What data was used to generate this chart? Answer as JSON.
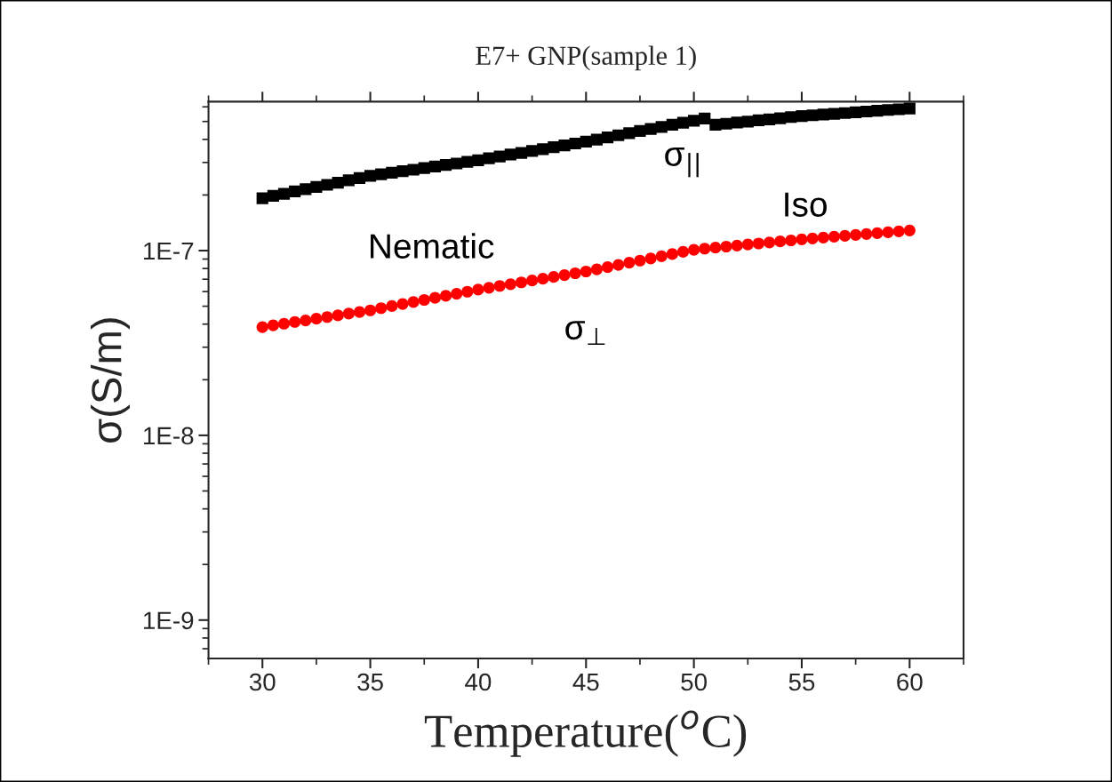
{
  "chart_data": {
    "type": "scatter",
    "title": "E7+ GNP(sample 1)",
    "xlabel": "Temperature($^{o}$C)",
    "ylabel": "σ(S/m)",
    "x": [
      30,
      30.5,
      31,
      31.5,
      32,
      32.5,
      33,
      33.5,
      34,
      34.5,
      35,
      35.5,
      36,
      36.5,
      37,
      37.5,
      38,
      38.5,
      39,
      39.5,
      40,
      40.5,
      41,
      41.5,
      42,
      42.5,
      43,
      43.5,
      44,
      44.5,
      45,
      45.5,
      46,
      46.5,
      47,
      47.5,
      48,
      48.5,
      49,
      49.5,
      50,
      50.5,
      51,
      51.5,
      52,
      52.5,
      53,
      53.5,
      54,
      54.5,
      55,
      55.5,
      56,
      56.5,
      57,
      57.5,
      58,
      58.5,
      59,
      59.5,
      60
    ],
    "series": [
      {
        "name": "σ$_{||}$",
        "color": "#000000",
        "marker": "square",
        "values": [
          1.92e-07,
          1.98e-07,
          2.03e-07,
          2.09e-07,
          2.15e-07,
          2.21e-07,
          2.27e-07,
          2.33e-07,
          2.4e-07,
          2.47e-07,
          2.54e-07,
          2.59e-07,
          2.64e-07,
          2.69e-07,
          2.74e-07,
          2.8e-07,
          2.85e-07,
          2.91e-07,
          2.96e-07,
          3.02e-07,
          3.08e-07,
          3.16e-07,
          3.23e-07,
          3.31e-07,
          3.38e-07,
          3.46e-07,
          3.54e-07,
          3.63e-07,
          3.71e-07,
          3.8e-07,
          3.89e-07,
          3.99e-07,
          4.1e-07,
          4.21e-07,
          4.32e-07,
          4.44e-07,
          4.55e-07,
          4.67e-07,
          4.8e-07,
          4.92e-07,
          5.05e-07,
          5.19e-07,
          4.8e-07,
          4.86e-07,
          4.93e-07,
          4.99e-07,
          5.07e-07,
          5.13e-07,
          5.2e-07,
          5.28e-07,
          5.35e-07,
          5.4e-07,
          5.45e-07,
          5.5e-07,
          5.55e-07,
          5.61e-07,
          5.66e-07,
          5.71e-07,
          5.77e-07,
          5.82e-07,
          5.87e-07
        ]
      },
      {
        "name": "σ$_{⊥}$",
        "color": "#ff0000",
        "marker": "circle",
        "values": [
          3.85e-08,
          3.94e-08,
          4.02e-08,
          4.11e-08,
          4.19e-08,
          4.28e-08,
          4.37e-08,
          4.46e-08,
          4.56e-08,
          4.65e-08,
          4.75e-08,
          4.88e-08,
          5.01e-08,
          5.14e-08,
          5.27e-08,
          5.41e-08,
          5.55e-08,
          5.69e-08,
          5.84e-08,
          5.99e-08,
          6.15e-08,
          6.29e-08,
          6.44e-08,
          6.58e-08,
          6.73e-08,
          6.89e-08,
          7.04e-08,
          7.2e-08,
          7.37e-08,
          7.54e-08,
          7.71e-08,
          7.92e-08,
          8.14e-08,
          8.37e-08,
          8.6e-08,
          8.83e-08,
          9.07e-08,
          9.32e-08,
          9.58e-08,
          9.84e-08,
          1.01e-07,
          1.025e-07,
          1.038e-07,
          1.051e-07,
          1.065e-07,
          1.079e-07,
          1.093e-07,
          1.107e-07,
          1.121e-07,
          1.136e-07,
          1.151e-07,
          1.164e-07,
          1.177e-07,
          1.19e-07,
          1.203e-07,
          1.216e-07,
          1.23e-07,
          1.243e-07,
          1.257e-07,
          1.271e-07,
          1.285e-07
        ]
      }
    ],
    "annotations": [
      "Nematic",
      "Iso"
    ],
    "log": "y",
    "xlim": [
      27.5,
      62.5
    ],
    "ylim": [
      6.2e-10,
      6.4e-07
    ],
    "xticks": [
      30,
      35,
      40,
      45,
      50,
      55,
      60
    ],
    "yticks": [
      {
        "value": 1e-09,
        "label": "1E-9"
      },
      {
        "value": 1e-08,
        "label": "1E-8"
      },
      {
        "value": 1e-07,
        "label": "1E-7"
      }
    ],
    "grid": false,
    "legend": false
  }
}
